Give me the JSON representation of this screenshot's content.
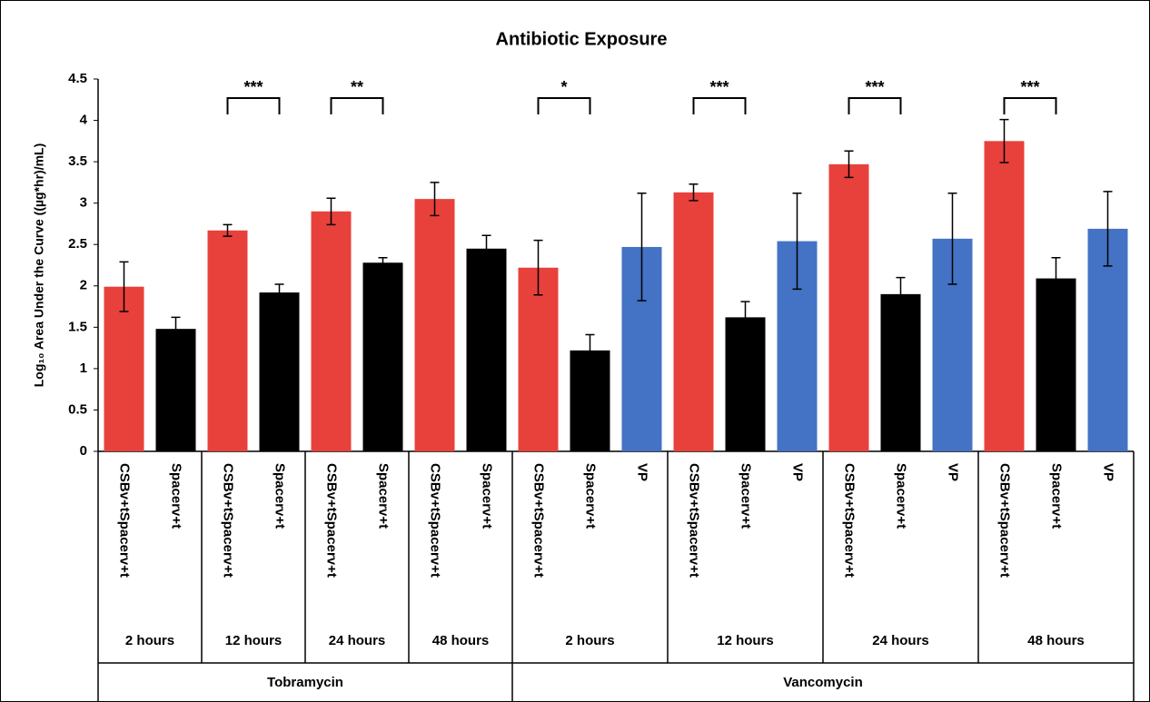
{
  "chart_data": {
    "type": "bar",
    "title": "Antibiotic Exposure",
    "y_label": "Log₁₀ Area Under the Curve ((µg*hr)/mL)",
    "ylim": [
      0,
      4.5
    ],
    "yticks": [
      0,
      0.5,
      1,
      1.5,
      2,
      2.5,
      3,
      3.5,
      4,
      4.5
    ],
    "groups": [
      {
        "name": "Tobramycin",
        "subgroups": [
          {
            "name": "2 hours",
            "categories": [
              "CSBv+tSpacerv+t",
              "Spacerv+t"
            ],
            "values": [
              1.99,
              1.48
            ],
            "errors": [
              0.3,
              0.14
            ],
            "colors": [
              "#e8413c",
              "#000000"
            ]
          },
          {
            "name": "12 hours",
            "categories": [
              "CSBv+tSpacerv+t",
              "Spacerv+t"
            ],
            "values": [
              2.67,
              1.92
            ],
            "errors": [
              0.07,
              0.1
            ],
            "colors": [
              "#e8413c",
              "#000000"
            ],
            "significance": "***"
          },
          {
            "name": "24 hours",
            "categories": [
              "CSBv+tSpacerv+t",
              "Spacerv+t"
            ],
            "values": [
              2.9,
              2.28
            ],
            "errors": [
              0.16,
              0.06
            ],
            "colors": [
              "#e8413c",
              "#000000"
            ],
            "significance": "**"
          },
          {
            "name": "48 hours",
            "categories": [
              "CSBv+tSpacerv+t",
              "Spacerv+t"
            ],
            "values": [
              3.05,
              2.45
            ],
            "errors": [
              0.2,
              0.16
            ],
            "colors": [
              "#e8413c",
              "#000000"
            ]
          }
        ]
      },
      {
        "name": "Vancomycin",
        "subgroups": [
          {
            "name": "2 hours",
            "categories": [
              "CSBv+tSpacerv+t",
              "Spacerv+t",
              "VP"
            ],
            "values": [
              2.22,
              1.22,
              2.47
            ],
            "errors": [
              0.33,
              0.19,
              0.65
            ],
            "colors": [
              "#e8413c",
              "#000000",
              "#4472c4"
            ],
            "significance": "*"
          },
          {
            "name": "12 hours",
            "categories": [
              "CSBv+tSpacerv+t",
              "Spacerv+t",
              "VP"
            ],
            "values": [
              3.13,
              1.62,
              2.54
            ],
            "errors": [
              0.1,
              0.19,
              0.58
            ],
            "colors": [
              "#e8413c",
              "#000000",
              "#4472c4"
            ],
            "significance": "***"
          },
          {
            "name": "24 hours",
            "categories": [
              "CSBv+tSpacerv+t",
              "Spacerv+t",
              "VP"
            ],
            "values": [
              3.47,
              1.9,
              2.57
            ],
            "errors": [
              0.16,
              0.2,
              0.55
            ],
            "colors": [
              "#e8413c",
              "#000000",
              "#4472c4"
            ],
            "significance": "***"
          },
          {
            "name": "48 hours",
            "categories": [
              "CSBv+tSpacerv+t",
              "Spacerv+t",
              "VP"
            ],
            "values": [
              3.75,
              2.09,
              2.69
            ],
            "errors": [
              0.26,
              0.25,
              0.45
            ],
            "colors": [
              "#e8413c",
              "#000000",
              "#4472c4"
            ],
            "significance": "***"
          }
        ]
      }
    ]
  }
}
